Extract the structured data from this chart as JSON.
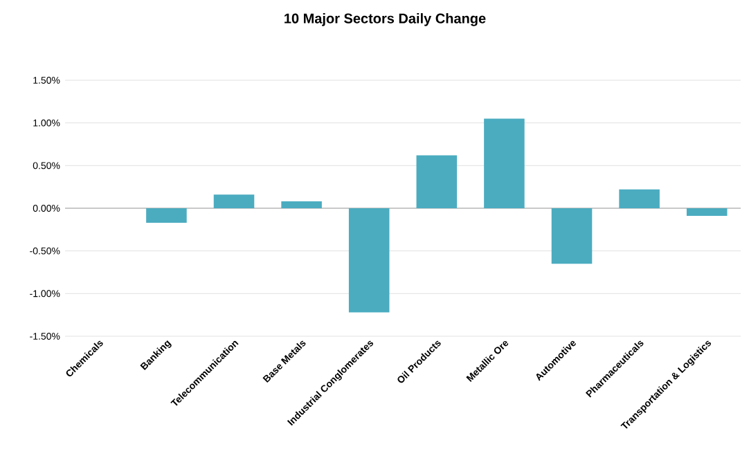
{
  "chart_data": {
    "type": "bar",
    "title": "10 Major Sectors Daily Change",
    "categories": [
      "Chemicals",
      "Banking",
      "Telecommunication",
      "Base Metals",
      "Industrial Conglomerates",
      "Oil Products",
      "Metallic Ore",
      "Automotive",
      "Pharmaceuticals",
      "Transportation & Logistics"
    ],
    "values": [
      0,
      -0.17,
      0.16,
      0.08,
      -1.22,
      0.62,
      1.05,
      -0.65,
      0.22,
      -0.09
    ],
    "color": "#4bacc0",
    "ylim": [
      -1.5,
      1.5
    ],
    "yticks": [
      {
        "value": -1.5,
        "label": "-1.50%"
      },
      {
        "value": -1.0,
        "label": "-1.00%"
      },
      {
        "value": -0.5,
        "label": "-0.50%"
      },
      {
        "value": 0,
        "label": "0.00%"
      },
      {
        "value": 0.5,
        "label": "0.50%"
      },
      {
        "value": 1.0,
        "label": "1.00%"
      },
      {
        "value": 1.5,
        "label": "1.50%"
      }
    ],
    "grid": "y"
  }
}
